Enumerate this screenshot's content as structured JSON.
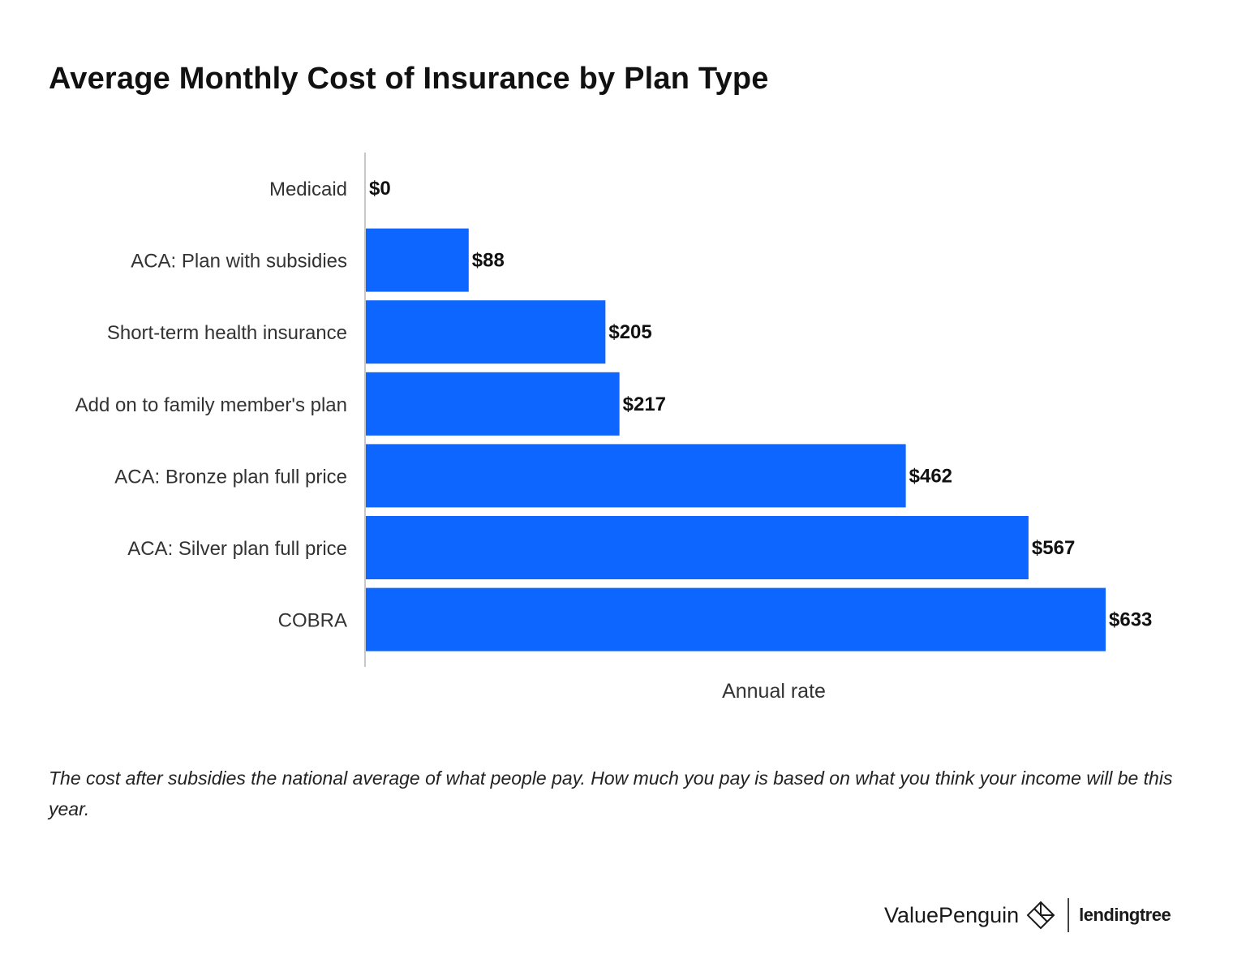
{
  "title": "Average Monthly Cost of Insurance by Plan Type",
  "note": "The cost after subsidies the national average of what people pay. How much you pay is based on what you think your income will be this year.",
  "branding": {
    "valuepenguin": "ValuePenguin",
    "lendingtree": "lendingtree",
    "icon": "penguin-diamond-icon"
  },
  "colors": {
    "bar": "#0d66ff",
    "axis": "#c8c8c8"
  },
  "chart_data": {
    "type": "bar",
    "orientation": "horizontal",
    "title": "Average Monthly Cost of Insurance by Plan Type",
    "categories": [
      "Medicaid",
      "ACA: Plan with subsidies",
      "Short-term health insurance",
      "Add on to family member's plan",
      "ACA: Bronze plan full price",
      "ACA: Silver plan full price",
      "COBRA"
    ],
    "values": [
      0,
      88,
      205,
      217,
      462,
      567,
      633
    ],
    "value_labels": [
      "$0",
      "$88",
      "$205",
      "$217",
      "$462",
      "$567",
      "$633"
    ],
    "xlabel": "Annual rate",
    "ylabel": "",
    "xlim": [
      0,
      700
    ],
    "grid": false,
    "legend": "none"
  }
}
